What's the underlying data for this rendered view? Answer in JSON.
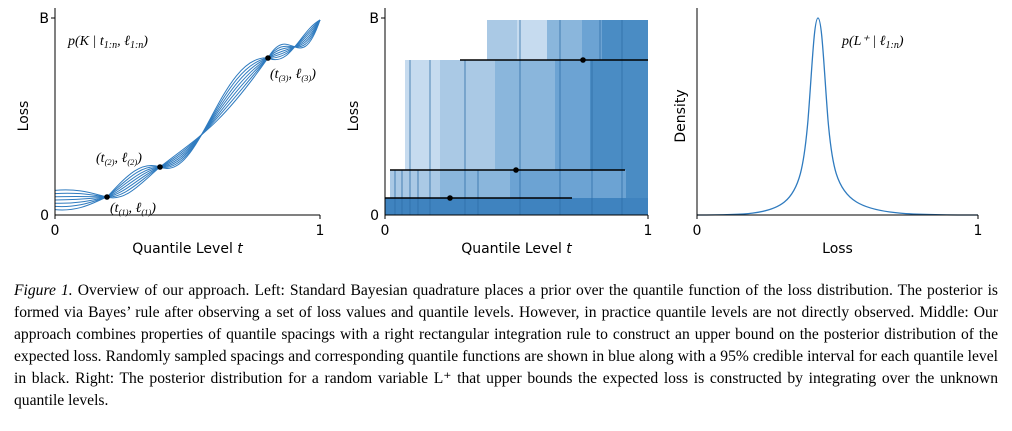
{
  "panels": [
    {
      "y_top_label": "B",
      "y_bottom_label": "0",
      "x_left_label": "0",
      "x_right_label": "1",
      "y_axis_label": "Loss",
      "x_axis_label": [
        "Quantile Level ",
        "t"
      ],
      "annotations": [
        [
          "p(K | t",
          "1:n",
          ", ℓ",
          "1:n",
          ")"
        ],
        [
          "(t",
          "(3)",
          ", ℓ",
          "(3)",
          ")"
        ],
        [
          "(t",
          "(2)",
          ", ℓ",
          "(2)",
          ")"
        ],
        [
          "(t",
          "(1)",
          ", ℓ",
          "(1)",
          ")"
        ]
      ]
    },
    {
      "y_top_label": "B",
      "y_bottom_label": "0",
      "x_left_label": "0",
      "x_right_label": "1",
      "y_axis_label": "Loss",
      "x_axis_label": [
        "Quantile Level ",
        "t"
      ],
      "annotations": []
    },
    {
      "x_left_label": "0",
      "x_right_label": "1",
      "y_axis_label": "Density",
      "x_axis_label": [
        "Loss"
      ],
      "annotations": [
        [
          "p(L⁺ | ℓ",
          "1:n",
          ")"
        ]
      ]
    }
  ],
  "caption": {
    "label": "Figure 1.",
    "text": " Overview of our approach. Left: Standard Bayesian quadrature places a prior over the quantile function of the loss distribution. The posterior is formed via Bayes’ rule after observing a set of loss values and quantile levels. However, in practice quantile levels are not directly observed. Middle: Our approach combines properties of quantile spacings with a right rectangular integration rule to construct an upper bound on the posterior distribution of the expected loss. Randomly sampled spacings and corresponding quantile functions are shown in blue along with a 95% credible interval for each quantile level in black. Right: The posterior distribution for a random variable L⁺ that upper bounds the expected loss is constructed by integrating over the unknown quantile levels."
  }
}
